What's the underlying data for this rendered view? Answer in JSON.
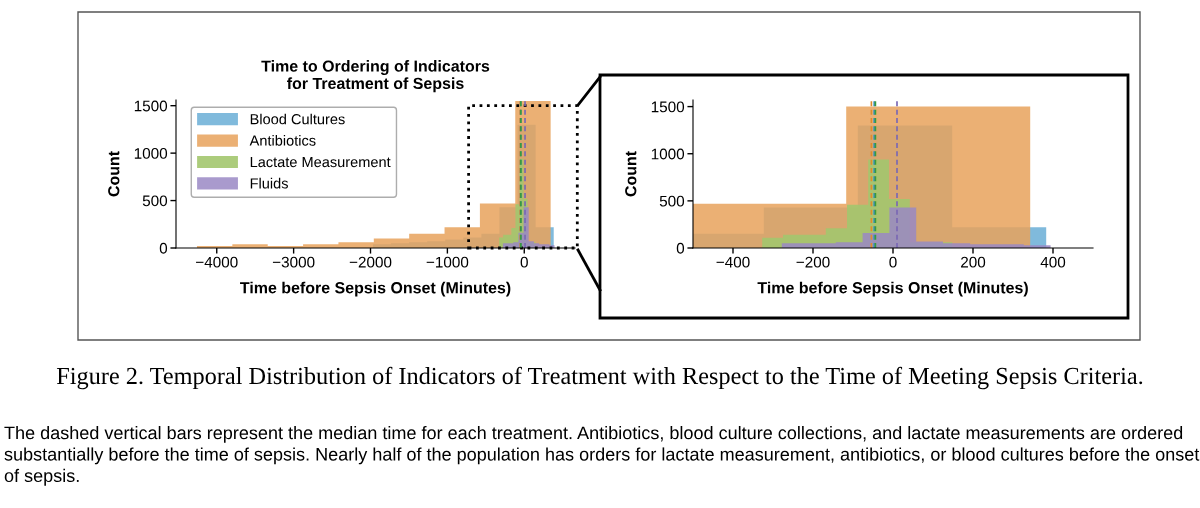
{
  "chart_data": [
    {
      "type": "area",
      "title": "Time to Ordering of Indicators\nfor Treatment of Sepsis",
      "xlabel": "Time before Sepsis Onset (Minutes)",
      "ylabel": "Count",
      "xlim": [
        -4530,
        660
      ],
      "ylim": [
        0,
        1560
      ],
      "xticks": [
        {
          "value": -4000,
          "label": "−4000"
        },
        {
          "value": -3000,
          "label": "−3000"
        },
        {
          "value": -2000,
          "label": "−2000"
        },
        {
          "value": -1000,
          "label": "−1000"
        },
        0
      ],
      "yticks": [
        0,
        500,
        1000,
        1500
      ],
      "legend": "top left",
      "grid": false,
      "series": [
        {
          "name": "Blood Cultures",
          "color": "#6aaed6",
          "x": [
            -1968,
            -1968,
            -1733,
            -1733,
            -1498,
            -1498,
            -1263,
            -1263,
            -1028,
            -1028,
            -793,
            -793,
            -558,
            -558,
            -323,
            -323,
            -88,
            -88,
            148,
            148,
            383,
            383
          ],
          "values": [
            0,
            40,
            40,
            50,
            50,
            60,
            60,
            70,
            70,
            90,
            90,
            110,
            110,
            150,
            150,
            430,
            430,
            1300,
            1300,
            220,
            220,
            0
          ]
        },
        {
          "name": "Antibiotics",
          "color": "#e8a25c",
          "x": [
            -4257,
            -4257,
            -3797,
            -3797,
            -3337,
            -3337,
            -2877,
            -2877,
            -2417,
            -2417,
            -1957,
            -1957,
            -1497,
            -1497,
            -1037,
            -1037,
            -577,
            -577,
            -117,
            -117,
            343,
            343
          ],
          "values": [
            0,
            20,
            20,
            40,
            40,
            20,
            20,
            40,
            40,
            60,
            60,
            100,
            100,
            150,
            150,
            220,
            220,
            470,
            470,
            1550,
            1550,
            0
          ]
        },
        {
          "name": "Lactate Measurement",
          "color": "#a3c76e",
          "x": [
            -327,
            -327,
            -275,
            -275,
            -221,
            -221,
            -168,
            -168,
            -115,
            -115,
            -62,
            -62,
            -10,
            -10,
            42,
            42,
            95,
            95,
            148,
            148
          ],
          "values": [
            0,
            110,
            110,
            140,
            140,
            140,
            140,
            210,
            210,
            460,
            460,
            940,
            940,
            520,
            520,
            60,
            60,
            60,
            60,
            0
          ]
        },
        {
          "name": "Fluids",
          "color": "#9a88c4",
          "x": [
            -278,
            -278,
            -210,
            -210,
            -143,
            -143,
            -76,
            -76,
            -9,
            -9,
            58,
            58,
            125,
            125,
            193,
            193,
            260,
            260,
            327,
            327,
            394,
            394
          ],
          "values": [
            0,
            50,
            50,
            50,
            50,
            60,
            60,
            160,
            160,
            430,
            430,
            70,
            70,
            50,
            50,
            40,
            40,
            40,
            40,
            30,
            30,
            0
          ]
        }
      ],
      "ref_lines": [
        {
          "axis": "x",
          "value": -54,
          "color": "#e08a2c",
          "line_style": "dashed"
        },
        {
          "axis": "x",
          "value": -47,
          "color": "#3a8ec6",
          "line_style": "dashed"
        },
        {
          "axis": "x",
          "value": -44,
          "color": "#3a9a3a",
          "line_style": "dashed"
        },
        {
          "axis": "x",
          "value": 10,
          "color": "#7a68b4",
          "line_style": "dashed"
        }
      ],
      "annotations": [
        "Figure 2. Temporal Distribution of Indicators of Treatment with Respect to the Time of Meeting Sepsis Criteria.",
        "The dashed vertical bars represent the median time for each treatment. Antibiotics, blood culture collections, and lactate measurements are ordered substantially before the time of sepsis. Nearly half of the population has orders for lactate measurement, antibiotics, or blood cultures before the onset of sepsis."
      ]
    },
    {
      "type": "area",
      "xlabel": "Time before Sepsis Onset (Minutes)",
      "ylabel": "Count",
      "xlim": [
        -500,
        500
      ],
      "ylim": [
        0,
        1570
      ],
      "xticks": [
        {
          "value": -400,
          "label": "−400"
        },
        {
          "value": -200,
          "label": "−200"
        },
        0,
        200,
        400
      ],
      "yticks": [
        0,
        500,
        1000,
        1500
      ],
      "legend": false,
      "grid": false,
      "series": [
        {
          "color": "#6aaed6",
          "x": [
            -500,
            -500,
            -323,
            -323,
            -88,
            -88,
            148,
            148,
            383,
            383
          ],
          "values": [
            0,
            150,
            150,
            430,
            430,
            1300,
            1300,
            220,
            220,
            0
          ]
        },
        {
          "color": "#e8a25c",
          "x": [
            -500,
            -500,
            -117,
            -117,
            343,
            343
          ],
          "values": [
            0,
            470,
            470,
            1500,
            1500,
            0
          ]
        },
        {
          "color": "#a3c76e",
          "x": [
            -327,
            -327,
            -275,
            -275,
            -221,
            -221,
            -168,
            -168,
            -115,
            -115,
            -62,
            -62,
            -10,
            -10,
            42,
            42,
            95,
            95,
            148,
            148
          ],
          "values": [
            0,
            110,
            110,
            140,
            140,
            140,
            140,
            210,
            210,
            460,
            460,
            940,
            940,
            520,
            520,
            60,
            60,
            60,
            60,
            0
          ]
        },
        {
          "color": "#9a88c4",
          "x": [
            -278,
            -278,
            -210,
            -210,
            -143,
            -143,
            -76,
            -76,
            -9,
            -9,
            58,
            58,
            125,
            125,
            193,
            193,
            260,
            260,
            327,
            327,
            394,
            394
          ],
          "values": [
            0,
            50,
            50,
            50,
            50,
            60,
            60,
            160,
            160,
            430,
            430,
            70,
            70,
            50,
            50,
            40,
            40,
            40,
            40,
            30,
            30,
            0
          ]
        }
      ],
      "ref_lines": [
        {
          "axis": "x",
          "value": -54,
          "color": "#e08a2c",
          "line_style": "dashed"
        },
        {
          "axis": "x",
          "value": -47,
          "color": "#3a8ec6",
          "line_style": "dashed"
        },
        {
          "axis": "x",
          "value": -44,
          "color": "#3a9a3a",
          "line_style": "dashed"
        },
        {
          "axis": "x",
          "value": 10,
          "color": "#7a68b4",
          "line_style": "dashed"
        }
      ]
    }
  ]
}
